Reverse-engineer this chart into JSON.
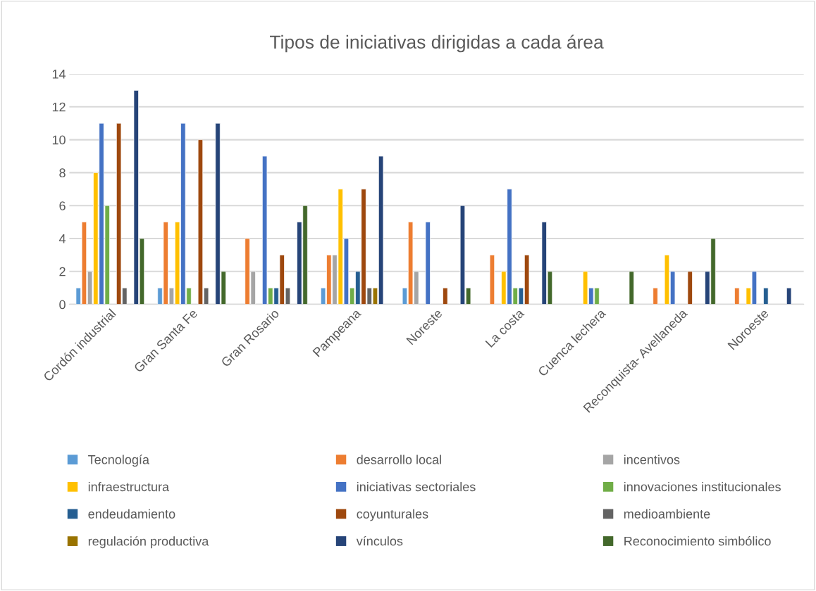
{
  "chart_data": {
    "type": "bar",
    "title": "Tipos de iniciativas dirigidas a cada área",
    "categories": [
      "Cordón industrial",
      "Gran Santa Fe",
      "Gran Rosario",
      "Pampeana",
      "Noreste",
      "La costa",
      "Cuenca lechera",
      "Reconquista- Avellaneda",
      "Noroeste"
    ],
    "series": [
      {
        "name": "Tecnología",
        "color": "#5b9bd5",
        "values": [
          1,
          1,
          null,
          1,
          1,
          null,
          null,
          null,
          null
        ]
      },
      {
        "name": "desarrollo local",
        "color": "#ed7d31",
        "values": [
          5,
          5,
          4,
          3,
          5,
          3,
          null,
          1,
          1
        ]
      },
      {
        "name": "incentivos",
        "color": "#a5a5a5",
        "values": [
          2,
          1,
          2,
          3,
          2,
          null,
          null,
          null,
          null
        ]
      },
      {
        "name": "infraestructura",
        "color": "#ffc000",
        "values": [
          8,
          5,
          null,
          7,
          null,
          2,
          2,
          3,
          1
        ]
      },
      {
        "name": "iniciativas sectoriales",
        "color": "#4472c4",
        "values": [
          11,
          11,
          9,
          4,
          5,
          7,
          1,
          2,
          2
        ]
      },
      {
        "name": "innovaciones institucionales",
        "color": "#70ad47",
        "values": [
          6,
          1,
          1,
          1,
          null,
          1,
          1,
          null,
          null
        ]
      },
      {
        "name": "endeudamiento",
        "color": "#255e91",
        "values": [
          null,
          null,
          1,
          2,
          null,
          1,
          null,
          null,
          1
        ]
      },
      {
        "name": "coyunturales",
        "color": "#9e480e",
        "values": [
          11,
          10,
          3,
          7,
          1,
          3,
          null,
          2,
          null
        ]
      },
      {
        "name": "medioambiente",
        "color": "#636363",
        "values": [
          1,
          1,
          1,
          1,
          null,
          null,
          null,
          null,
          null
        ]
      },
      {
        "name": "regulación productiva",
        "color": "#997300",
        "values": [
          null,
          null,
          null,
          1,
          null,
          null,
          null,
          null,
          null
        ]
      },
      {
        "name": "vínculos",
        "color": "#264478",
        "values": [
          13,
          11,
          5,
          9,
          6,
          5,
          null,
          2,
          1
        ]
      },
      {
        "name": "Reconocimiento simbólico",
        "color": "#43682b",
        "values": [
          4,
          2,
          6,
          null,
          1,
          2,
          2,
          4,
          null
        ]
      }
    ],
    "ylim": [
      0,
      14
    ],
    "yticks": [
      0,
      2,
      4,
      6,
      8,
      10,
      12,
      14
    ],
    "grid": "y",
    "legend": "bottom"
  }
}
